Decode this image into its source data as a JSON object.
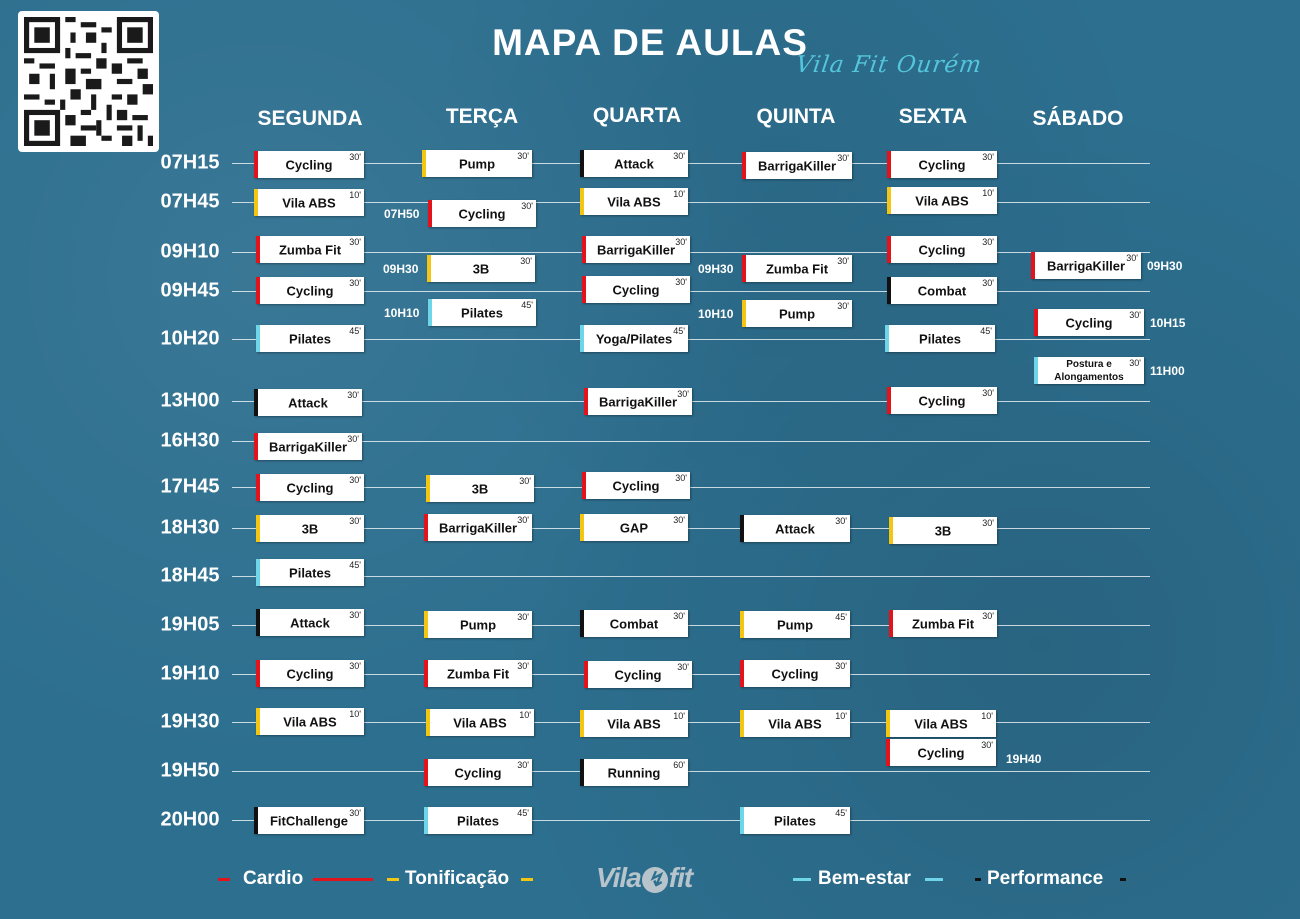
{
  "header": {
    "title": "MAPA DE AULAS",
    "subtitle": "Vila Fit Ourém"
  },
  "days": [
    "SEGUNDA",
    "TERÇA",
    "QUARTA",
    "QUINTA",
    "SEXTA",
    "SÁBADO"
  ],
  "times": [
    "07H15",
    "07H45",
    "09H10",
    "09H45",
    "10H20",
    "13H00",
    "16H30",
    "17H45",
    "18H30",
    "18H45",
    "19H05",
    "19H10",
    "19H30",
    "19H50",
    "20H00"
  ],
  "categories": {
    "cardio": {
      "label": "Cardio",
      "color": "#e3131b"
    },
    "tonificacao": {
      "label": "Tonificação",
      "color": "#f3c614"
    },
    "bem_estar": {
      "label": "Bem-estar",
      "color": "#6fd6ea"
    },
    "performance": {
      "label": "Performance",
      "color": "#111111"
    }
  },
  "classes": [
    {
      "day": "SEGUNDA",
      "name": "Cycling",
      "dur": "30'",
      "cat": "cardio"
    },
    {
      "day": "SEGUNDA",
      "name": "Vila ABS",
      "dur": "10'",
      "cat": "tonificacao"
    },
    {
      "day": "SEGUNDA",
      "name": "Zumba Fit",
      "dur": "30'",
      "cat": "cardio"
    },
    {
      "day": "SEGUNDA",
      "name": "Cycling",
      "dur": "30'",
      "cat": "cardio"
    },
    {
      "day": "SEGUNDA",
      "name": "Pilates",
      "dur": "45'",
      "cat": "bem_estar"
    },
    {
      "day": "SEGUNDA",
      "name": "Attack",
      "dur": "30'",
      "cat": "performance"
    },
    {
      "day": "SEGUNDA",
      "name": "BarrigaKiller",
      "dur": "30'",
      "cat": "cardio"
    },
    {
      "day": "SEGUNDA",
      "name": "Cycling",
      "dur": "30'",
      "cat": "cardio"
    },
    {
      "day": "SEGUNDA",
      "name": "3B",
      "dur": "30'",
      "cat": "tonificacao"
    },
    {
      "day": "SEGUNDA",
      "name": "Pilates",
      "dur": "45'",
      "cat": "bem_estar"
    },
    {
      "day": "SEGUNDA",
      "name": "Attack",
      "dur": "30'",
      "cat": "performance"
    },
    {
      "day": "SEGUNDA",
      "name": "Cycling",
      "dur": "30'",
      "cat": "cardio"
    },
    {
      "day": "SEGUNDA",
      "name": "Vila ABS",
      "dur": "10'",
      "cat": "tonificacao"
    },
    {
      "day": "SEGUNDA",
      "name": "FitChallenge",
      "dur": "30'",
      "cat": "performance"
    },
    {
      "day": "TERÇA",
      "name": "Pump",
      "dur": "30'",
      "cat": "tonificacao"
    },
    {
      "day": "TERÇA",
      "name": "Cycling",
      "dur": "30'",
      "cat": "cardio",
      "side_time": "07H50"
    },
    {
      "day": "TERÇA",
      "name": "3B",
      "dur": "30'",
      "cat": "tonificacao",
      "side_time": "09H30"
    },
    {
      "day": "TERÇA",
      "name": "Pilates",
      "dur": "45'",
      "cat": "bem_estar",
      "side_time": "10H10"
    },
    {
      "day": "TERÇA",
      "name": "3B",
      "dur": "30'",
      "cat": "tonificacao"
    },
    {
      "day": "TERÇA",
      "name": "BarrigaKiller",
      "dur": "30'",
      "cat": "cardio"
    },
    {
      "day": "TERÇA",
      "name": "Pump",
      "dur": "30'",
      "cat": "tonificacao"
    },
    {
      "day": "TERÇA",
      "name": "Zumba Fit",
      "dur": "30'",
      "cat": "cardio"
    },
    {
      "day": "TERÇA",
      "name": "Vila ABS",
      "dur": "10'",
      "cat": "tonificacao"
    },
    {
      "day": "TERÇA",
      "name": "Cycling",
      "dur": "30'",
      "cat": "cardio"
    },
    {
      "day": "TERÇA",
      "name": "Pilates",
      "dur": "45'",
      "cat": "bem_estar"
    },
    {
      "day": "QUARTA",
      "name": "Attack",
      "dur": "30'",
      "cat": "performance"
    },
    {
      "day": "QUARTA",
      "name": "Vila ABS",
      "dur": "10'",
      "cat": "tonificacao"
    },
    {
      "day": "QUARTA",
      "name": "BarrigaKiller",
      "dur": "30'",
      "cat": "cardio"
    },
    {
      "day": "QUARTA",
      "name": "Cycling",
      "dur": "30'",
      "cat": "cardio"
    },
    {
      "day": "QUARTA",
      "name": "Yoga/Pilates",
      "dur": "45'",
      "cat": "bem_estar"
    },
    {
      "day": "QUARTA",
      "name": "BarrigaKiller",
      "dur": "30'",
      "cat": "cardio"
    },
    {
      "day": "QUARTA",
      "name": "Cycling",
      "dur": "30'",
      "cat": "cardio"
    },
    {
      "day": "QUARTA",
      "name": "GAP",
      "dur": "30'",
      "cat": "tonificacao"
    },
    {
      "day": "QUARTA",
      "name": "Combat",
      "dur": "30'",
      "cat": "performance"
    },
    {
      "day": "QUARTA",
      "name": "Cycling",
      "dur": "30'",
      "cat": "cardio"
    },
    {
      "day": "QUARTA",
      "name": "Vila ABS",
      "dur": "10'",
      "cat": "tonificacao"
    },
    {
      "day": "QUARTA",
      "name": "Running",
      "dur": "60'",
      "cat": "performance"
    },
    {
      "day": "QUINTA",
      "name": "BarrigaKiller",
      "dur": "30'",
      "cat": "cardio"
    },
    {
      "day": "QUINTA",
      "name": "Zumba Fit",
      "dur": "30'",
      "cat": "cardio",
      "side_time": "09H30"
    },
    {
      "day": "QUINTA",
      "name": "Pump",
      "dur": "30'",
      "cat": "tonificacao",
      "side_time": "10H10"
    },
    {
      "day": "QUINTA",
      "name": "Attack",
      "dur": "30'",
      "cat": "performance"
    },
    {
      "day": "QUINTA",
      "name": "Pump",
      "dur": "45'",
      "cat": "tonificacao"
    },
    {
      "day": "QUINTA",
      "name": "Cycling",
      "dur": "30'",
      "cat": "cardio"
    },
    {
      "day": "QUINTA",
      "name": "Vila ABS",
      "dur": "10'",
      "cat": "tonificacao"
    },
    {
      "day": "QUINTA",
      "name": "Pilates",
      "dur": "45'",
      "cat": "bem_estar"
    },
    {
      "day": "SEXTA",
      "name": "Cycling",
      "dur": "30'",
      "cat": "cardio"
    },
    {
      "day": "SEXTA",
      "name": "Vila ABS",
      "dur": "10'",
      "cat": "tonificacao"
    },
    {
      "day": "SEXTA",
      "name": "Cycling",
      "dur": "30'",
      "cat": "cardio"
    },
    {
      "day": "SEXTA",
      "name": "Combat",
      "dur": "30'",
      "cat": "performance"
    },
    {
      "day": "SEXTA",
      "name": "Pilates",
      "dur": "45'",
      "cat": "bem_estar"
    },
    {
      "day": "SEXTA",
      "name": "Cycling",
      "dur": "30'",
      "cat": "cardio"
    },
    {
      "day": "SEXTA",
      "name": "3B",
      "dur": "30'",
      "cat": "tonificacao"
    },
    {
      "day": "SEXTA",
      "name": "Zumba Fit",
      "dur": "30'",
      "cat": "cardio"
    },
    {
      "day": "SEXTA",
      "name": "Vila ABS",
      "dur": "10'",
      "cat": "tonificacao"
    },
    {
      "day": "SEXTA",
      "name": "Cycling",
      "dur": "30'",
      "cat": "cardio",
      "side_time": "19H40"
    },
    {
      "day": "SÁBADO",
      "name": "BarrigaKiller",
      "dur": "30'",
      "cat": "cardio",
      "side_time": "09H30"
    },
    {
      "day": "SÁBADO",
      "name": "Cycling",
      "dur": "30'",
      "cat": "cardio",
      "side_time": "10H15"
    },
    {
      "day": "SÁBADO",
      "name": "Postura e Alongamentos",
      "dur": "30'",
      "cat": "bem_estar",
      "side_time": "11H00"
    }
  ],
  "legend": [
    {
      "label": "Cardio",
      "cat": "cardio"
    },
    {
      "label": "Tonificação",
      "cat": "tonificacao"
    },
    {
      "label": "Bem-estar",
      "cat": "bem_estar"
    },
    {
      "label": "Performance",
      "cat": "performance"
    }
  ],
  "logo": {
    "left": "Vila",
    "right": "fit",
    "mark": "↯"
  }
}
